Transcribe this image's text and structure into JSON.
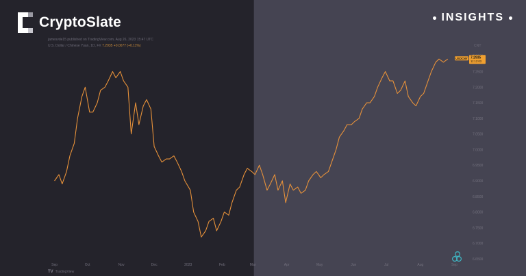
{
  "brand": {
    "name": "CryptoSlate"
  },
  "badge": {
    "label": "INSIGHTS"
  },
  "meta": {
    "published": "jamesvde15 published on TradingView.com, Aug 26, 2023 15:47 UTC",
    "ticker_line": "U.S. Dollar / Chinese Yuan, 1D, FX",
    "ticker_values": "7.2935 +0.0077 (+0.11%)"
  },
  "footer": {
    "source": "TradingView"
  },
  "colors": {
    "line": "#e8923a",
    "bg_left": "#24232b",
    "bg_right": "#454452",
    "label_bg": "#f0a030"
  },
  "chart_data": {
    "type": "line",
    "title": "",
    "xlabel": "",
    "ylabel": "",
    "unit": "CNY",
    "ylim": [
      6.65,
      7.33
    ],
    "yticks": [
      "7.3000",
      "7.2500",
      "7.2000",
      "7.1500",
      "7.1000",
      "7.0500",
      "7.0000",
      "6.9500",
      "6.9000",
      "6.8500",
      "6.8000",
      "6.7500",
      "6.7000",
      "6.6500"
    ],
    "xtick_labels": [
      "Sep",
      "Oct",
      "Nov",
      "Dec",
      "2023",
      "Feb",
      "Mar",
      "Apr",
      "May",
      "Jun",
      "Jul",
      "Aug",
      "Sep"
    ],
    "last_label": {
      "symbol": "USDCNY",
      "value": "7.2935",
      "time": "11:12:03"
    },
    "highlight_from": "Mar",
    "series": [
      {
        "name": "USDCNY",
        "x": [
          "2022-09-01",
          "2022-09-05",
          "2022-09-08",
          "2022-09-12",
          "2022-09-15",
          "2022-09-19",
          "2022-09-22",
          "2022-09-26",
          "2022-09-29",
          "2022-10-03",
          "2022-10-06",
          "2022-10-10",
          "2022-10-13",
          "2022-10-17",
          "2022-10-20",
          "2022-10-24",
          "2022-10-27",
          "2022-10-31",
          "2022-11-03",
          "2022-11-07",
          "2022-11-10",
          "2022-11-14",
          "2022-11-17",
          "2022-11-21",
          "2022-11-24",
          "2022-11-28",
          "2022-12-01",
          "2022-12-05",
          "2022-12-08",
          "2022-12-12",
          "2022-12-15",
          "2022-12-19",
          "2022-12-22",
          "2022-12-26",
          "2022-12-29",
          "2023-01-03",
          "2023-01-06",
          "2023-01-10",
          "2023-01-13",
          "2023-01-17",
          "2023-01-20",
          "2023-01-24",
          "2023-01-27",
          "2023-01-31",
          "2023-02-03",
          "2023-02-07",
          "2023-02-10",
          "2023-02-14",
          "2023-02-17",
          "2023-02-21",
          "2023-02-24",
          "2023-02-28",
          "2023-03-03",
          "2023-03-07",
          "2023-03-10",
          "2023-03-14",
          "2023-03-17",
          "2023-03-21",
          "2023-03-24",
          "2023-03-28",
          "2023-03-31",
          "2023-04-04",
          "2023-04-07",
          "2023-04-11",
          "2023-04-14",
          "2023-04-18",
          "2023-04-21",
          "2023-04-25",
          "2023-04-28",
          "2023-05-02",
          "2023-05-05",
          "2023-05-09",
          "2023-05-12",
          "2023-05-16",
          "2023-05-19",
          "2023-05-23",
          "2023-05-26",
          "2023-05-30",
          "2023-06-02",
          "2023-06-06",
          "2023-06-09",
          "2023-06-13",
          "2023-06-16",
          "2023-06-20",
          "2023-06-23",
          "2023-06-27",
          "2023-06-30",
          "2023-07-04",
          "2023-07-07",
          "2023-07-11",
          "2023-07-14",
          "2023-07-18",
          "2023-07-21",
          "2023-07-25",
          "2023-07-28",
          "2023-08-01",
          "2023-08-04",
          "2023-08-08",
          "2023-08-11",
          "2023-08-15",
          "2023-08-18",
          "2023-08-22",
          "2023-08-26"
        ],
        "values": [
          6.9,
          6.92,
          6.89,
          6.93,
          6.98,
          7.02,
          7.1,
          7.17,
          7.2,
          7.12,
          7.12,
          7.15,
          7.19,
          7.2,
          7.22,
          7.25,
          7.23,
          7.25,
          7.22,
          7.2,
          7.05,
          7.15,
          7.08,
          7.14,
          7.16,
          7.13,
          7.01,
          6.98,
          6.96,
          6.97,
          6.97,
          6.98,
          6.96,
          6.93,
          6.9,
          6.87,
          6.8,
          6.77,
          6.72,
          6.74,
          6.77,
          6.78,
          6.74,
          6.77,
          6.8,
          6.79,
          6.83,
          6.87,
          6.88,
          6.92,
          6.94,
          6.93,
          6.92,
          6.95,
          6.92,
          6.87,
          6.89,
          6.92,
          6.87,
          6.9,
          6.83,
          6.89,
          6.87,
          6.88,
          6.86,
          6.87,
          6.9,
          6.92,
          6.93,
          6.91,
          6.92,
          6.93,
          6.96,
          7.0,
          7.04,
          7.06,
          7.08,
          7.08,
          7.09,
          7.1,
          7.13,
          7.15,
          7.15,
          7.17,
          7.2,
          7.23,
          7.25,
          7.22,
          7.22,
          7.18,
          7.19,
          7.22,
          7.17,
          7.15,
          7.14,
          7.17,
          7.18,
          7.22,
          7.25,
          7.28,
          7.29,
          7.28,
          7.29
        ]
      }
    ],
    "grid": false,
    "legend": "none"
  }
}
